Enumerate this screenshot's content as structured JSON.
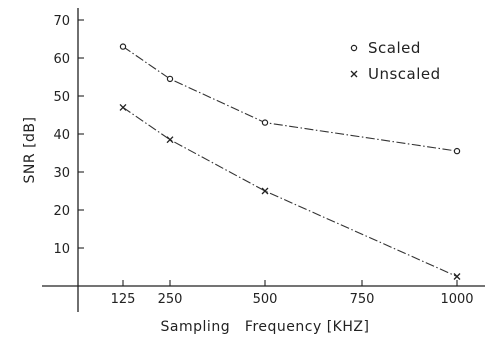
{
  "chart_data": {
    "type": "line",
    "xlabel": "Sampling   Frequency [KHZ]",
    "ylabel": "SNR [dB]",
    "x_ticks": [
      "125",
      "250",
      "500",
      "750",
      "1000"
    ],
    "x_tick_values": [
      125,
      250,
      500,
      750,
      1000
    ],
    "y_ticks": [
      "10",
      "20",
      "30",
      "40",
      "50",
      "60",
      "70"
    ],
    "y_tick_values": [
      10,
      20,
      30,
      40,
      50,
      60,
      70
    ],
    "ylim": [
      0,
      70
    ],
    "xlim": [
      0,
      1050
    ],
    "grid": false,
    "legend_position": "top-right",
    "series": [
      {
        "name": "Scaled",
        "marker": "circle",
        "x": [
          125,
          250,
          500,
          1000
        ],
        "y": [
          63,
          54.5,
          43,
          35.5
        ]
      },
      {
        "name": "Unscaled",
        "marker": "x",
        "x": [
          125,
          250,
          500,
          1000
        ],
        "y": [
          47,
          38.5,
          25,
          2.5
        ]
      }
    ]
  }
}
